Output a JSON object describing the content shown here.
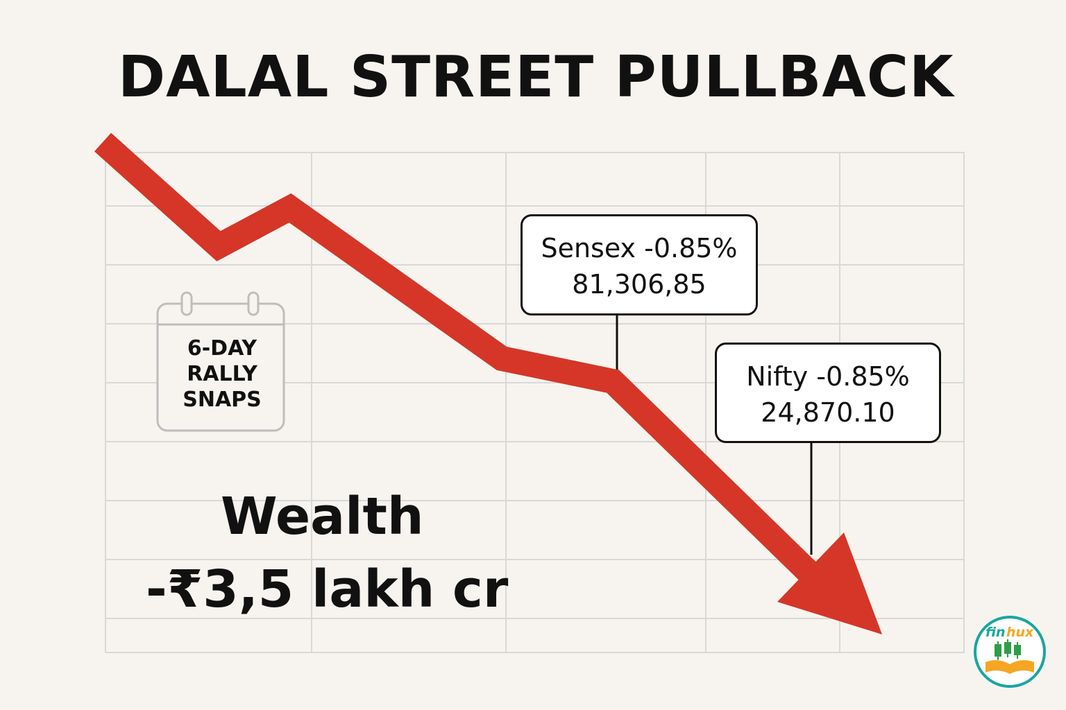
{
  "headline": "DALAL STREET PULLBACK",
  "calendar": {
    "lines": [
      "6-DAY",
      "RALLY",
      "SNAPS"
    ],
    "icon": "calendar-icon"
  },
  "sensex": {
    "label": "Sensex -0.85%",
    "value": "81,306,85"
  },
  "nifty": {
    "label": "Nifty -0.85%",
    "value": "24,870.10"
  },
  "wealth": {
    "label": "Wealth",
    "value": "-₹3,5 lakh cr"
  },
  "logo": {
    "text_fin": "fin",
    "text_hux": "hux",
    "icon": "finhux-logo-icon"
  },
  "colors": {
    "background": "#f7f4ef",
    "arrow": "#d53627",
    "grid": "#d8d8d8",
    "text": "#111111",
    "logo_teal": "#17a6a0",
    "logo_orange": "#f5a623",
    "logo_green": "#2e9d48"
  },
  "arrow_icon": "down-trend-arrow-icon"
}
